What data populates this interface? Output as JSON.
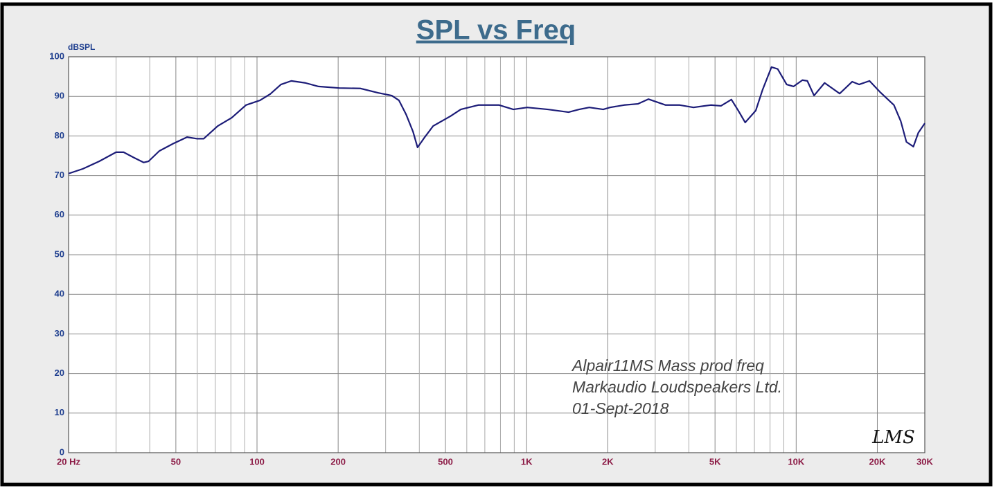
{
  "chart_data": {
    "type": "line",
    "title": "SPL vs Freq",
    "y_unit_label": "dBSPL",
    "log_x": true,
    "grid": true,
    "xlim": [
      20,
      30000
    ],
    "ylim": [
      0,
      100
    ],
    "xticks": [
      {
        "value": 20,
        "label": "20 Hz"
      },
      50,
      100,
      200,
      500,
      {
        "value": 1000,
        "label": "1K"
      },
      {
        "value": 2000,
        "label": "2K"
      },
      {
        "value": 5000,
        "label": "5K"
      },
      {
        "value": 10000,
        "label": "10K"
      },
      {
        "value": 20000,
        "label": "20K"
      },
      {
        "value": 30000,
        "label": "30K"
      }
    ],
    "x_minor_grid": [
      30,
      40,
      60,
      70,
      80,
      90,
      300,
      400,
      600,
      700,
      800,
      900,
      3000,
      4000,
      6000,
      7000,
      8000,
      9000
    ],
    "yticks": [
      0,
      10,
      20,
      30,
      40,
      50,
      60,
      70,
      80,
      90,
      100
    ],
    "annotations": [
      "Alpair11MS Mass prod freq",
      "Markaudio Loudspeakers Ltd.",
      "01-Sept-2018"
    ],
    "logo": "LMS",
    "series": [
      {
        "color": "#1c1c78",
        "x": [
          20,
          22.6,
          26,
          30,
          32,
          35,
          38,
          39.6,
          43.4,
          49,
          55,
          60,
          63.4,
          71.5,
          80.6,
          91,
          102.6,
          112,
          122.7,
          134,
          151,
          169,
          202,
          242,
          281,
          316,
          336,
          357,
          379,
          394,
          416,
          450,
          522,
          570,
          662,
          791,
          893,
          1006,
          1199,
          1431,
          1566,
          1708,
          1924,
          2040,
          2300,
          2586,
          2830,
          3280,
          3700,
          4160,
          4820,
          5260,
          5750,
          6100,
          6470,
          7080,
          7500,
          8100,
          8540,
          9220,
          9780,
          10550,
          11000,
          11650,
          12750,
          14500,
          16130,
          17110,
          18710,
          20460,
          23050,
          24440,
          25640,
          27210,
          28380,
          30000
        ],
        "values": [
          70.5,
          71.7,
          73.6,
          75.9,
          75.9,
          74.5,
          73.3,
          73.6,
          76.2,
          78.1,
          79.7,
          79.3,
          79.3,
          82.5,
          84.6,
          87.8,
          89,
          90.6,
          93,
          93.9,
          93.4,
          92.5,
          92.1,
          92,
          90.9,
          90.2,
          89,
          85.5,
          81.1,
          77.1,
          79.4,
          82.5,
          85,
          86.7,
          87.8,
          87.8,
          86.7,
          87.2,
          86.7,
          86,
          86.7,
          87.2,
          86.7,
          87.2,
          87.8,
          88.1,
          89.3,
          87.8,
          87.8,
          87.2,
          87.8,
          87.6,
          89.2,
          86.4,
          83.4,
          86.4,
          91.6,
          97.4,
          96.9,
          93,
          92.5,
          94.1,
          93.9,
          90.2,
          93.4,
          90.7,
          93.7,
          93,
          93.9,
          91.1,
          87.8,
          83.7,
          78.5,
          77.3,
          80.8,
          83.2
        ]
      }
    ]
  }
}
